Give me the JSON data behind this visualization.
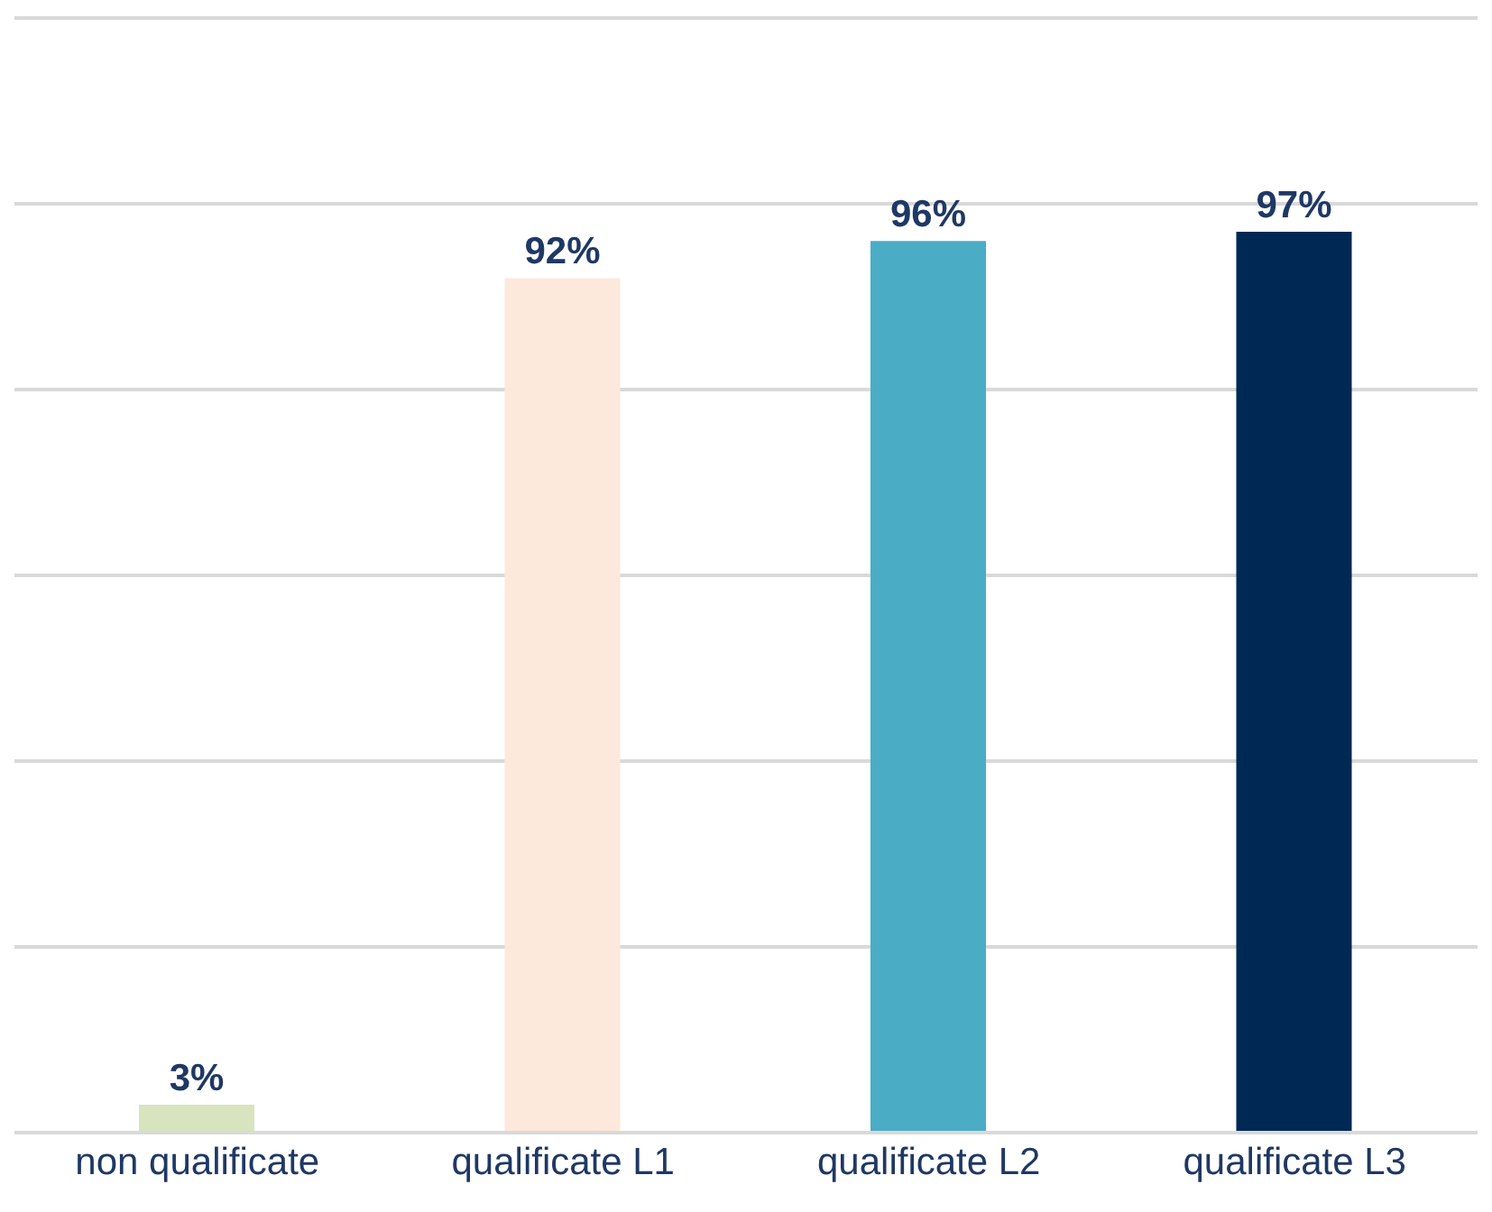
{
  "chart_data": {
    "type": "bar",
    "categories": [
      "non qualificate",
      "qualificate L1",
      "qualificate L2",
      "qualificate L3"
    ],
    "values": [
      3,
      92,
      96,
      97
    ],
    "colors": [
      "#d7e4bd",
      "#fce9db",
      "#4bacc6",
      "#002855"
    ],
    "value_labels": [
      "3%",
      "92%",
      "96%",
      "97%"
    ],
    "ylim": [
      0,
      120
    ],
    "yticks": [
      {
        "value": 0,
        "label": null
      },
      {
        "value": 20,
        "label": null
      },
      {
        "value": 40,
        "label": null
      },
      {
        "value": 60,
        "label": null
      },
      {
        "value": 80,
        "label": null
      },
      {
        "value": 100,
        "label": null
      },
      {
        "value": 120,
        "label": null
      }
    ],
    "grid": "y",
    "tick_labels": "x"
  }
}
